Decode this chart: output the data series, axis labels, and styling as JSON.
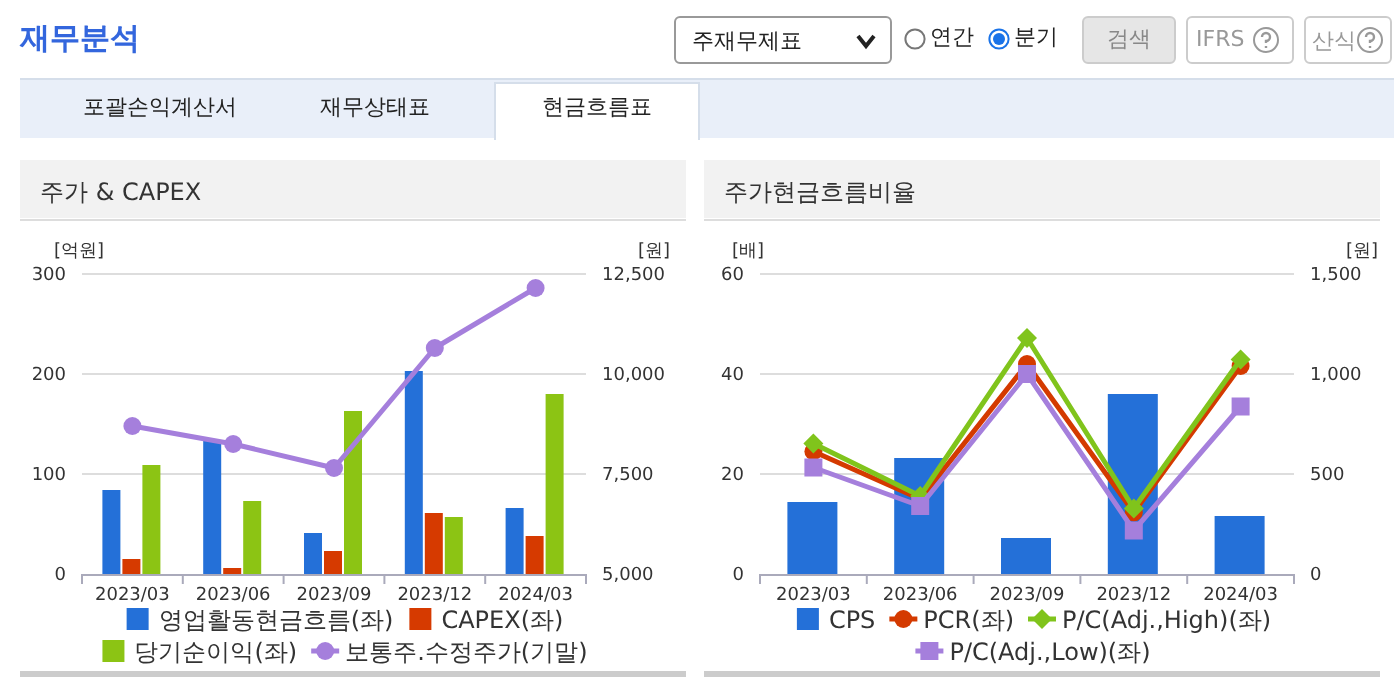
{
  "chart_data": [
    {
      "type": "other",
      "title": "재무분석",
      "annotations": [
        "주재무제표",
        "연간",
        "분기",
        "검색",
        "IFRS",
        "산식",
        "포괄손익계산서",
        "재무상태표",
        "현금흐름표"
      ]
    },
    {
      "type": "bar",
      "title": "주가 & CAPEX",
      "ylabel": "[억원]",
      "y2label": "[원]",
      "categories": [
        "2023/03",
        "2023/06",
        "2023/09",
        "2023/12",
        "2024/03"
      ],
      "series": [
        {
          "name": "영업활동현금흐름(좌)",
          "type": "bar",
          "color": "#2470d8",
          "values": [
            84,
            133,
            41,
            203,
            66
          ]
        },
        {
          "name": "CAPEX(좌)",
          "type": "bar",
          "color": "#d63a00",
          "values": [
            15,
            6,
            23,
            61,
            38
          ]
        },
        {
          "name": "당기순이익(좌)",
          "type": "bar",
          "color": "#8cc414",
          "values": [
            109,
            73,
            163,
            57,
            180
          ]
        },
        {
          "name": "보통주.수정주가(기말)",
          "type": "line",
          "axis": "y2",
          "marker": "circle",
          "color": "#a57fdc",
          "values": [
            8700,
            8250,
            7650,
            10650,
            12150
          ]
        }
      ],
      "ylim": [
        0,
        300
      ],
      "yticks": [
        0,
        100,
        200,
        300
      ],
      "y2lim": [
        5000,
        12500
      ],
      "y2ticks": [
        {
          "value": 5000,
          "label": "5,000"
        },
        {
          "value": 7500,
          "label": "7,500"
        },
        {
          "value": 10000,
          "label": "10,000"
        },
        {
          "value": 12500,
          "label": "12,500"
        }
      ],
      "grid": "y",
      "legend": "bottom"
    },
    {
      "type": "bar",
      "title": "주가현금흐름비율",
      "ylabel": "[배]",
      "y2label": "[원]",
      "categories": [
        "2023/03",
        "2023/06",
        "2023/09",
        "2023/12",
        "2024/03"
      ],
      "series": [
        {
          "name": "CPS",
          "type": "bar",
          "axis": "y2",
          "color": "#2470d8",
          "values": [
            360,
            580,
            180,
            900,
            290
          ]
        },
        {
          "name": "PCR(좌)",
          "type": "line",
          "marker": "circle",
          "color": "#d43a00",
          "values": [
            24.5,
            15,
            42,
            12.3,
            41.6
          ]
        },
        {
          "name": "P/C(Adj.,High)(좌)",
          "type": "line",
          "marker": "diamond",
          "color": "#80c41c",
          "values": [
            26.1,
            15.6,
            47.2,
            13.1,
            42.9
          ]
        },
        {
          "name": "P/C(Adj.,Low)(좌)",
          "type": "line",
          "marker": "square",
          "color": "#a57fdc",
          "values": [
            21.3,
            13.6,
            40,
            8.7,
            33.5
          ]
        }
      ],
      "ylim": [
        0,
        60
      ],
      "yticks": [
        0,
        20,
        40,
        60
      ],
      "y2lim": [
        0,
        1500
      ],
      "y2ticks": [
        0,
        500,
        {
          "value": 1000,
          "label": "1,000"
        },
        {
          "value": 1500,
          "label": "1,500"
        }
      ],
      "grid": "y",
      "legend": "bottom"
    }
  ]
}
